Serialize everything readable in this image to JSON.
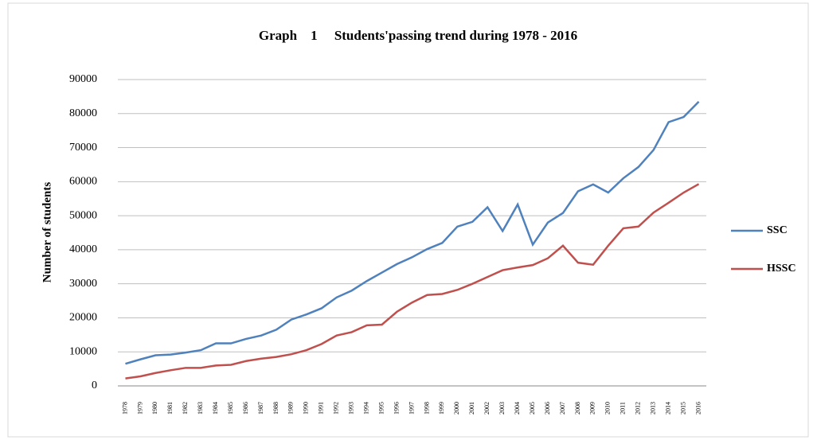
{
  "chart_data": {
    "type": "line",
    "title": "Graph    1     Students'passing trend during 1978 - 2016",
    "y_label": "Number of students",
    "categories": [
      "1978",
      "1979",
      "1980",
      "1981",
      "1982",
      "1983",
      "1984",
      "1985",
      "1986",
      "1987",
      "1988",
      "1989",
      "1990",
      "1991",
      "1992",
      "1993",
      "1994",
      "1995",
      "1996",
      "1997",
      "1998",
      "1999",
      "2000",
      "2001",
      "2002",
      "2003",
      "2004",
      "2005",
      "2006",
      "2007",
      "2008",
      "2009",
      "2010",
      "2011",
      "2012",
      "2013",
      "2014",
      "2015",
      "2016"
    ],
    "series": [
      {
        "name": "SSC",
        "color": "#4f81bd",
        "values": [
          6500,
          7800,
          9000,
          9200,
          9800,
          10500,
          12500,
          12500,
          13800,
          14800,
          16500,
          19500,
          21000,
          22800,
          26000,
          28000,
          30800,
          33300,
          35800,
          37800,
          40200,
          42000,
          46800,
          48200,
          52500,
          45500,
          53300,
          41500,
          48000,
          50800,
          57200,
          59200,
          56800,
          61000,
          64300,
          69300,
          77500,
          79000,
          83500
        ]
      },
      {
        "name": "HSSC",
        "color": "#c0504d",
        "values": [
          2200,
          2800,
          3800,
          4600,
          5300,
          5300,
          6000,
          6200,
          7300,
          8000,
          8500,
          9300,
          10500,
          12300,
          14800,
          15800,
          17800,
          18000,
          21800,
          24500,
          26700,
          27000,
          28200,
          30000,
          32000,
          34000,
          34800,
          35500,
          37500,
          41200,
          36200,
          35600,
          41200,
          46300,
          46800,
          50900,
          53800,
          56800,
          59300
        ]
      }
    ],
    "ylim": [
      0,
      90000
    ],
    "yticks": [
      0,
      10000,
      20000,
      30000,
      40000,
      50000,
      60000,
      70000,
      80000,
      90000
    ],
    "grid": true,
    "legend": "right"
  }
}
